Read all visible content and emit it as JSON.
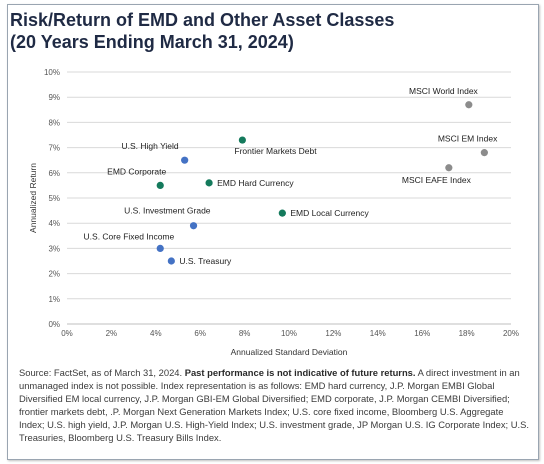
{
  "title_line1": "Risk/Return of EMD and Other Asset Classes",
  "title_line2": "(20 Years Ending March 31, 2024)",
  "source": {
    "prefix": "Source: FactSet, as of March 31, 2024. ",
    "bold": "Past performance is not indicative of future returns.",
    "rest": " A direct investment in an unmanaged index is not possible. Index representation is as follows: EMD hard currency, J.P. Morgan EMBI Global Diversified EM local currency, J.P. Morgan GBI-EM Global Diversified; EMD corporate, J.P. Morgan CEMBI Diversified; frontier markets debt, .P. Morgan Next Generation Markets Index; U.S. core fixed income, Bloomberg U.S. Aggregate Index; U.S. high yield, J.P. Morgan U.S. High-Yield Index; U.S. investment grade, JP Morgan U.S. IG Corporate Index; U.S. Treasuries, Bloomberg U.S. Treasury Bills Index."
  },
  "colors": {
    "emd": "#147a5c",
    "us": "#4472c4",
    "msci": "#8c8c8c",
    "grid": "#d9d9d9",
    "title": "#1f2a44"
  },
  "chart_data": {
    "type": "scatter",
    "xlabel": "Annualized Standard Deviation",
    "ylabel": "Annualized Return",
    "xlim": [
      0,
      20
    ],
    "ylim": [
      0,
      10
    ],
    "x_ticks": [
      "0%",
      "2%",
      "4%",
      "6%",
      "8%",
      "10%",
      "12%",
      "14%",
      "16%",
      "18%",
      "20%"
    ],
    "y_ticks": [
      "0%",
      "1%",
      "2%",
      "3%",
      "4%",
      "5%",
      "6%",
      "7%",
      "8%",
      "9%",
      "10%"
    ],
    "grid": "horizontal",
    "points": [
      {
        "label": "U.S. High Yield",
        "x": 5.3,
        "y": 6.5,
        "group": "us",
        "anchor": "end",
        "dx": -6,
        "dy": -11
      },
      {
        "label": "Frontier Markets Debt",
        "x": 7.9,
        "y": 7.3,
        "group": "emd",
        "anchor": "start",
        "dx": -8,
        "dy": 14
      },
      {
        "label": "EMD Corporate",
        "x": 4.2,
        "y": 5.5,
        "group": "emd",
        "anchor": "end",
        "dx": 6,
        "dy": -11
      },
      {
        "label": "EMD Hard Currency",
        "x": 6.4,
        "y": 5.6,
        "group": "emd",
        "anchor": "start",
        "dx": 8,
        "dy": 3
      },
      {
        "label": "U.S. Investment Grade",
        "x": 5.7,
        "y": 3.9,
        "group": "us",
        "anchor": "end",
        "dx": 17,
        "dy": -12
      },
      {
        "label": "EMD Local Currency",
        "x": 9.7,
        "y": 4.4,
        "group": "emd",
        "anchor": "start",
        "dx": 8,
        "dy": 3
      },
      {
        "label": "U.S. Core Fixed Income",
        "x": 4.2,
        "y": 3.0,
        "group": "us",
        "anchor": "end",
        "dx": 14,
        "dy": -9
      },
      {
        "label": "U.S. Treasury",
        "x": 4.7,
        "y": 2.5,
        "group": "us",
        "anchor": "start",
        "dx": 8,
        "dy": 3
      },
      {
        "label": "MSCI World Index",
        "x": 18.1,
        "y": 8.7,
        "group": "msci",
        "anchor": "end",
        "dx": 9,
        "dy": -11
      },
      {
        "label": "MSCI EM Index",
        "x": 18.8,
        "y": 6.8,
        "group": "msci",
        "anchor": "end",
        "dx": 13,
        "dy": -11
      },
      {
        "label": "MSCI EAFE Index",
        "x": 17.2,
        "y": 6.2,
        "group": "msci",
        "anchor": "end",
        "dx": 22,
        "dy": 15
      }
    ]
  }
}
